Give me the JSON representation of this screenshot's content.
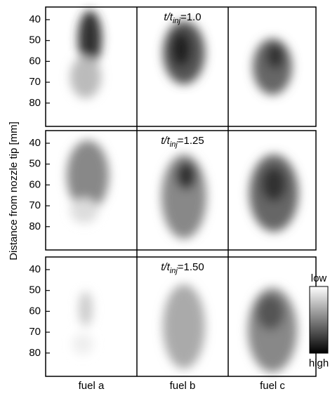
{
  "y_axis": {
    "label": "Distance from nozzle tip [mm]",
    "ticks": [
      40,
      50,
      60,
      70,
      80
    ]
  },
  "rows": [
    {
      "label": {
        "symbol": "t/t",
        "subscript": "inj",
        "value": "=1.0"
      }
    },
    {
      "label": {
        "symbol": "t/t",
        "subscript": "inj",
        "value": "=1.25"
      }
    },
    {
      "label": {
        "symbol": "t/t",
        "subscript": "inj",
        "value": "=1.50"
      }
    }
  ],
  "columns": [
    "fuel a",
    "fuel b",
    "fuel c"
  ],
  "colorbar": {
    "top_label": "low",
    "bottom_label": "high"
  }
}
